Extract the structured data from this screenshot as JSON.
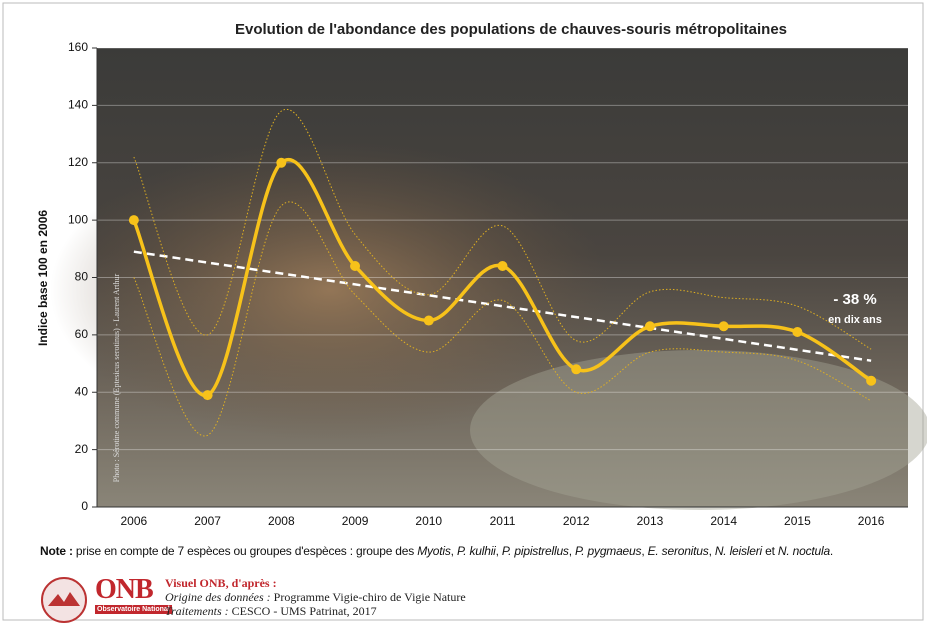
{
  "chart_data": {
    "type": "line",
    "title": "Evolution de l'abondance des populations de chauves-souris métropolitaines",
    "y_label": "Indice  base 100 en 2006",
    "categories": [
      "2006",
      "2007",
      "2008",
      "2009",
      "2010",
      "2011",
      "2012",
      "2013",
      "2014",
      "2015",
      "2016"
    ],
    "series": [
      {
        "color": "#f7c21a",
        "values": [
          100,
          39,
          120,
          84,
          65,
          84,
          48,
          63,
          63,
          61,
          44
        ],
        "style": "solid"
      },
      {
        "color": "#e0b020",
        "values": [
          122,
          60,
          138,
          95,
          74,
          98,
          58,
          75,
          73,
          70,
          55
        ],
        "style": "dotted"
      },
      {
        "color": "#e0b020",
        "values": [
          80,
          25,
          105,
          74,
          54,
          72,
          40,
          54,
          54,
          51,
          37
        ],
        "style": "dotted"
      }
    ],
    "trend": {
      "color": "#ffffff",
      "values": [
        89,
        51
      ]
    },
    "annotation": {
      "title": "- 38 %",
      "subtitle": "en dix ans"
    },
    "ylim": [
      0,
      160
    ],
    "yticks": [
      0,
      20,
      40,
      60,
      80,
      100,
      120,
      140,
      160
    ],
    "grid": true,
    "photo_credit": "Photo : Sérotine commune (Eptesicus serotinus) - Laurent Arthur"
  },
  "note": {
    "label": "Note :",
    "segments": [
      {
        "text": " prise en compte de 7 espèces ou groupes d'espèces : groupe des ",
        "italic": false
      },
      {
        "text": "Myotis",
        "italic": true
      },
      {
        "text": ", ",
        "italic": false
      },
      {
        "text": "P. kulhii",
        "italic": true
      },
      {
        "text": ", ",
        "italic": false
      },
      {
        "text": "P. pipistrellus",
        "italic": true
      },
      {
        "text": ", ",
        "italic": false
      },
      {
        "text": "P. pygmaeus",
        "italic": true
      },
      {
        "text": ", ",
        "italic": false
      },
      {
        "text": "E. seronitus",
        "italic": true
      },
      {
        "text": ", ",
        "italic": false
      },
      {
        "text": "N. leisleri",
        "italic": true
      },
      {
        "text": " et ",
        "italic": false
      },
      {
        "text": "N. noctula",
        "italic": true
      },
      {
        "text": ".",
        "italic": false
      }
    ]
  },
  "footer": {
    "logo": "ONB",
    "logo_sub": "Observatoire National",
    "heading": "Visuel ONB, d'après :",
    "lines": [
      {
        "label": "Origine des données :",
        "text": " Programme Vigie-chiro de Vigie Nature"
      },
      {
        "label": "Traitements :",
        "text": " CESCO - UMS Patrinat, 2017"
      }
    ]
  }
}
